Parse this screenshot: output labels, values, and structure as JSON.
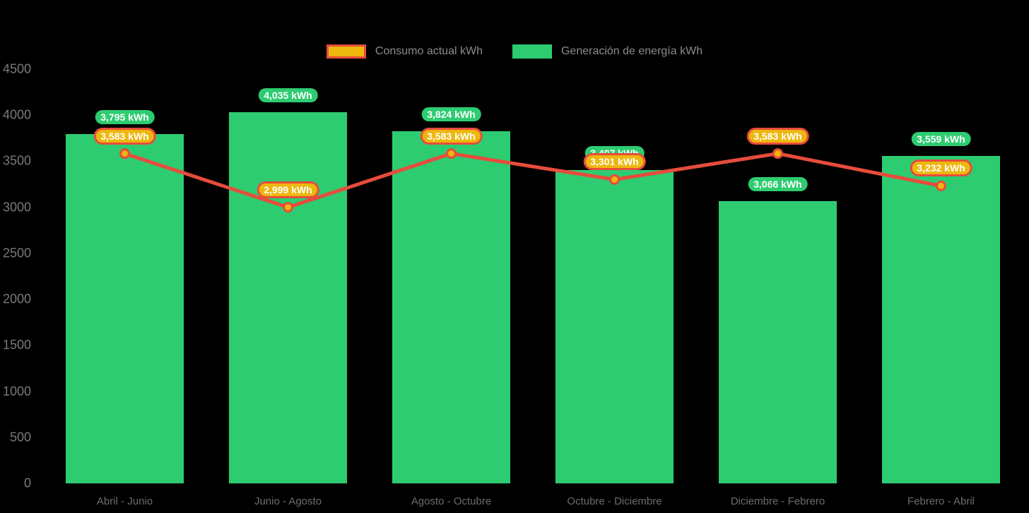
{
  "page": {
    "background_color": "#000000"
  },
  "legend": {
    "items": [
      {
        "label": "Consumo actual kWh",
        "swatch_style": "amber-with-red-border"
      },
      {
        "label": "Generación de energía kWh",
        "swatch_style": "green"
      }
    ]
  },
  "chart_data": {
    "type": "bar",
    "subtype": "combo-bar-line",
    "title": "",
    "xlabel": "",
    "ylabel": "",
    "categories": [
      "Abril - Junio",
      "Junio - Agosto",
      "Agosto - Octubre",
      "Octubre - Diciembre",
      "Diciembre - Febrero",
      "Febrero - Abril"
    ],
    "series": [
      {
        "name": "Generación de energía kWh",
        "type": "bar",
        "color": "#2ecc71",
        "values": [
          3795,
          4035,
          3824,
          3407,
          3066,
          3559
        ],
        "labels": [
          "3,795 kWh",
          "4,035 kWh",
          "3,824 kWh",
          "3,407 kWh",
          "3,066 kWh",
          "3,559 kWh"
        ]
      },
      {
        "name": "Consumo actual kWh",
        "type": "line",
        "color": "#e74c3c",
        "marker_fill": "#efb50c",
        "values": [
          3583,
          2999,
          3583,
          3301,
          3583,
          3232
        ],
        "labels": [
          "3,583 kWh",
          "2,999 kWh",
          "3,583 kWh",
          "3,301 kWh",
          "3,583 kWh",
          "3,232 kWh"
        ]
      }
    ],
    "ylim": [
      0,
      4500
    ],
    "y_ticks": [
      4500,
      4000,
      3500,
      3000,
      2500,
      2000,
      1500,
      1000,
      500,
      0
    ],
    "grid": false,
    "legend_position": "top-center",
    "colors": {
      "bar_green": "#2ecc71",
      "line_red": "#e74c3c",
      "marker_amber": "#efb50c",
      "pill_green_bg": "#2ecc71",
      "pill_amber_bg": "#eeb70e",
      "pill_text": "#ffffff",
      "axis_text": "#7a7a7a",
      "category_text": "#6c6c6c",
      "legend_text": "#8b8b8b",
      "background": "#000000"
    }
  }
}
